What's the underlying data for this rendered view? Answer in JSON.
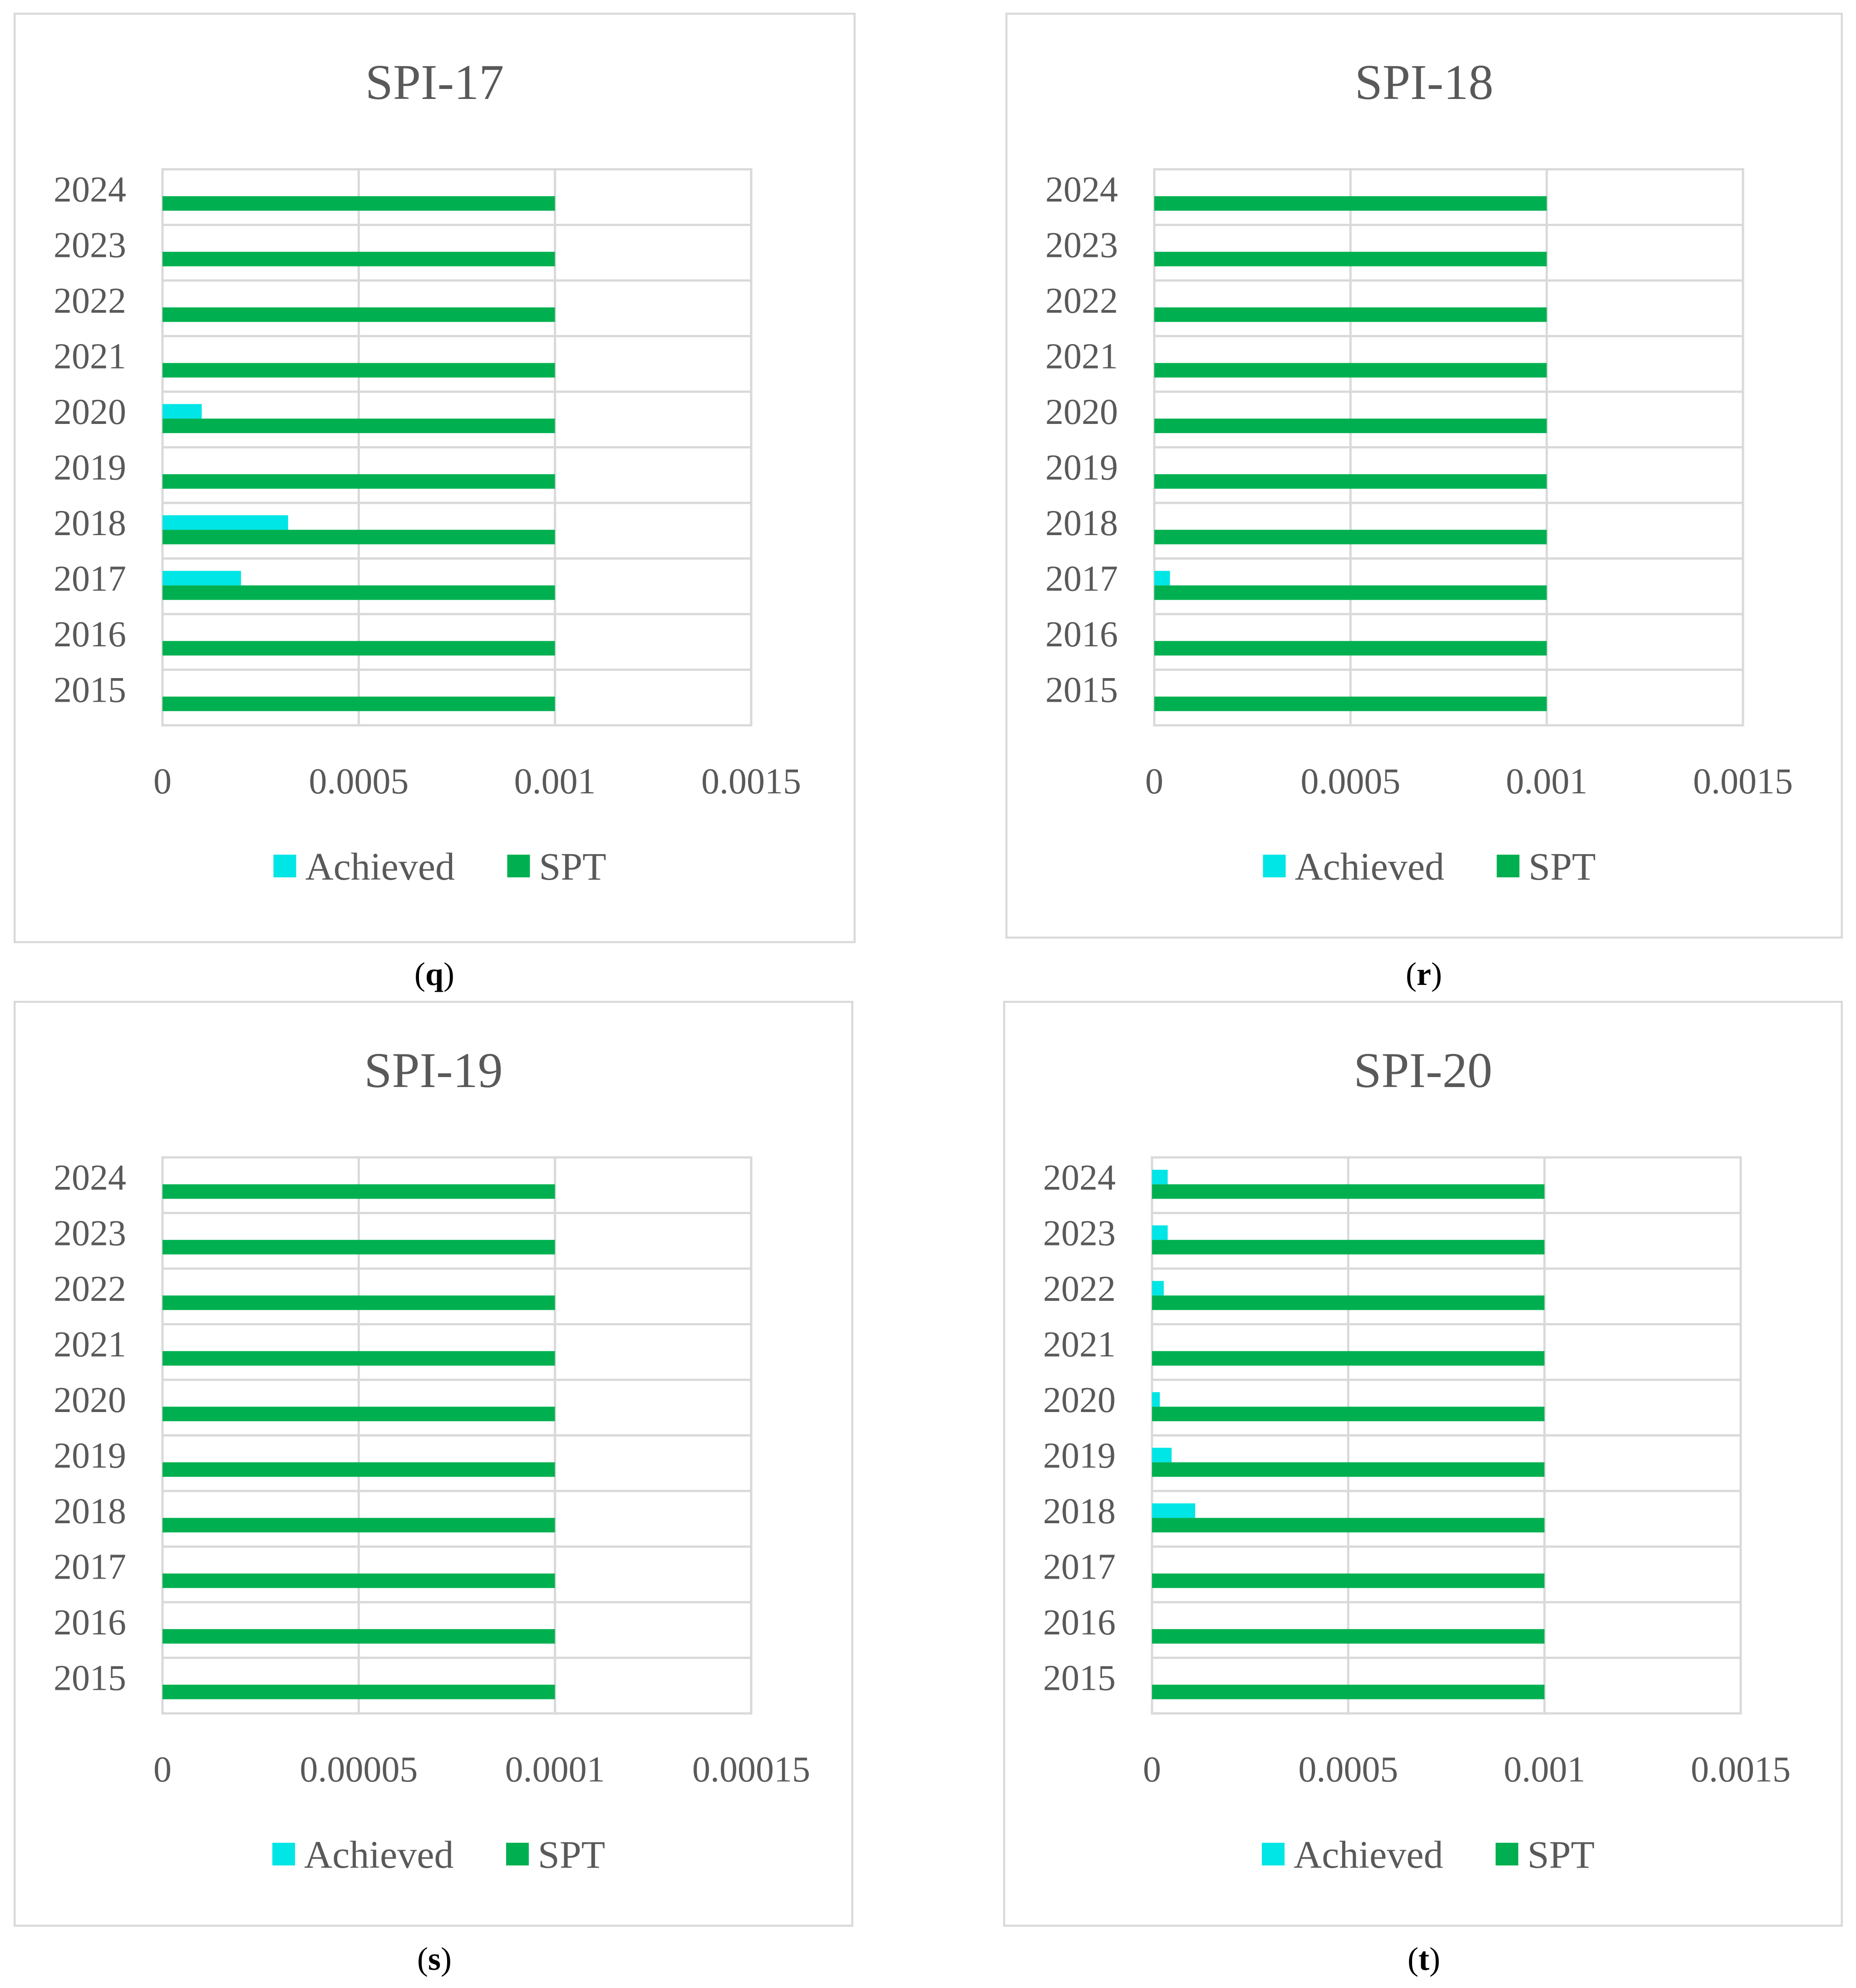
{
  "figure": {
    "colors": {
      "achieved": "#00E5E5",
      "spt": "#00B050",
      "grid": "#D9D9D9",
      "frame": "#D9D9D9",
      "text": "#595959"
    }
  },
  "chart_data": [
    {
      "type": "bar",
      "orientation": "horizontal",
      "title": "SPI-17",
      "caption": "q",
      "categories": [
        "2015",
        "2016",
        "2017",
        "2018",
        "2019",
        "2020",
        "2021",
        "2022",
        "2023",
        "2024"
      ],
      "xlim": [
        0,
        0.0015
      ],
      "x_ticks": [
        "0",
        "0.0005",
        "0.001",
        "0.0015"
      ],
      "grid": true,
      "legend": "bottom",
      "series": [
        {
          "name": "Achieved",
          "values": [
            0,
            0,
            0.0002,
            0.00032,
            0,
            0.0001,
            0,
            0,
            0,
            0
          ]
        },
        {
          "name": "SPT",
          "values": [
            0.001,
            0.001,
            0.001,
            0.001,
            0.001,
            0.001,
            0.001,
            0.001,
            0.001,
            0.001
          ]
        }
      ]
    },
    {
      "type": "bar",
      "orientation": "horizontal",
      "title": "SPI-18",
      "caption": "r",
      "categories": [
        "2015",
        "2016",
        "2017",
        "2018",
        "2019",
        "2020",
        "2021",
        "2022",
        "2023",
        "2024"
      ],
      "xlim": [
        0,
        0.0015
      ],
      "x_ticks": [
        "0",
        "0.0005",
        "0.001",
        "0.0015"
      ],
      "grid": true,
      "legend": "bottom",
      "series": [
        {
          "name": "Achieved",
          "values": [
            0,
            0,
            4e-05,
            0,
            0,
            0,
            0,
            0,
            0,
            0
          ]
        },
        {
          "name": "SPT",
          "values": [
            0.001,
            0.001,
            0.001,
            0.001,
            0.001,
            0.001,
            0.001,
            0.001,
            0.001,
            0.001
          ]
        }
      ]
    },
    {
      "type": "bar",
      "orientation": "horizontal",
      "title": "SPI-19",
      "caption": "s",
      "categories": [
        "2015",
        "2016",
        "2017",
        "2018",
        "2019",
        "2020",
        "2021",
        "2022",
        "2023",
        "2024"
      ],
      "xlim": [
        0,
        0.00015
      ],
      "x_ticks": [
        "0",
        "0.00005",
        "0.0001",
        "0.00015"
      ],
      "grid": true,
      "legend": "bottom",
      "series": [
        {
          "name": "Achieved",
          "values": [
            0,
            0,
            0,
            0,
            0,
            0,
            0,
            0,
            0,
            0
          ]
        },
        {
          "name": "SPT",
          "values": [
            0.0001,
            0.0001,
            0.0001,
            0.0001,
            0.0001,
            0.0001,
            0.0001,
            0.0001,
            0.0001,
            0.0001
          ]
        }
      ]
    },
    {
      "type": "bar",
      "orientation": "horizontal",
      "title": "SPI-20",
      "caption": "t",
      "categories": [
        "2015",
        "2016",
        "2017",
        "2018",
        "2019",
        "2020",
        "2021",
        "2022",
        "2023",
        "2024"
      ],
      "xlim": [
        0,
        0.0015
      ],
      "x_ticks": [
        "0",
        "0.0005",
        "0.001",
        "0.0015"
      ],
      "grid": true,
      "legend": "bottom",
      "series": [
        {
          "name": "Achieved",
          "values": [
            0,
            0,
            0,
            0.00011,
            5e-05,
            2e-05,
            0,
            3e-05,
            4e-05,
            4e-05
          ]
        },
        {
          "name": "SPT",
          "values": [
            0.001,
            0.001,
            0.001,
            0.001,
            0.001,
            0.001,
            0.001,
            0.001,
            0.001,
            0.001
          ]
        }
      ]
    }
  ]
}
